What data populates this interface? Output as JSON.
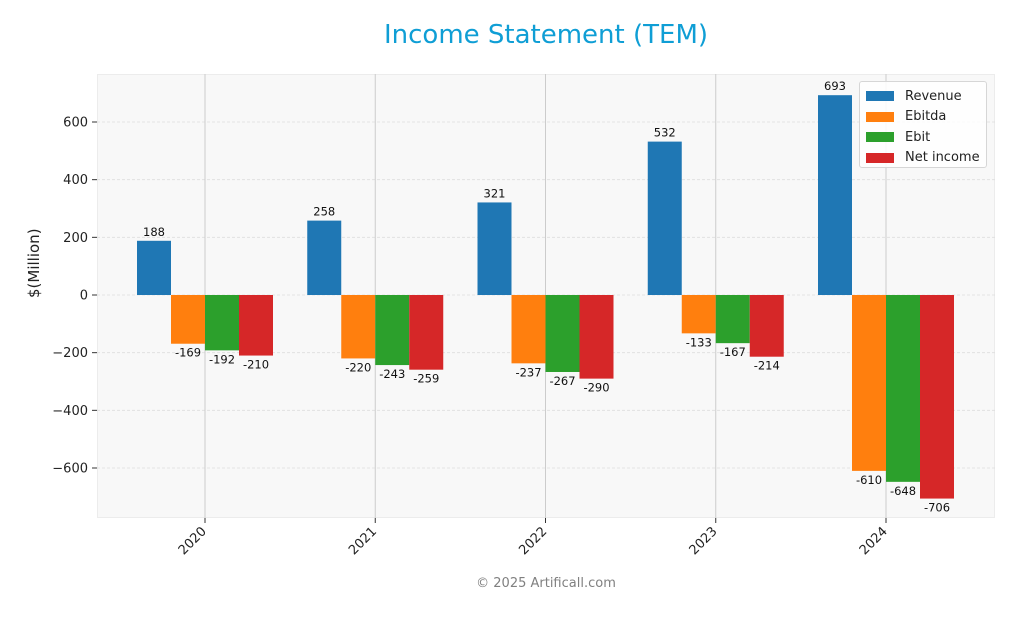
{
  "title": "Income Statement (TEM)",
  "footer": "© 2025 Artificall.com",
  "colors": {
    "title": "#0f9ed5",
    "Revenue": "#1f77b4",
    "Ebitda": "#ff7f0e",
    "Ebit": "#2ca02c",
    "Net income": "#d62728"
  },
  "legend": [
    {
      "label": "Revenue",
      "color": "#1f77b4"
    },
    {
      "label": "Ebitda",
      "color": "#ff7f0e"
    },
    {
      "label": "Ebit",
      "color": "#2ca02c"
    },
    {
      "label": "Net income",
      "color": "#d62728"
    }
  ],
  "chart_data": {
    "type": "bar",
    "title": "Income Statement (TEM)",
    "xlabel": "",
    "ylabel": "$(Million)",
    "categories": [
      "2020",
      "2021",
      "2022",
      "2023",
      "2024"
    ],
    "series": [
      {
        "name": "Revenue",
        "values": [
          188,
          258,
          321,
          532,
          693
        ]
      },
      {
        "name": "Ebitda",
        "values": [
          -169,
          -220,
          -237,
          -133,
          -610
        ]
      },
      {
        "name": "Ebit",
        "values": [
          -192,
          -243,
          -267,
          -167,
          -648
        ]
      },
      {
        "name": "Net income",
        "values": [
          -210,
          -259,
          -290,
          -214,
          -706
        ]
      }
    ],
    "yticks": [
      -600,
      -400,
      -200,
      0,
      200,
      400,
      600
    ],
    "ylim": [
      -775,
      770
    ],
    "grid": true,
    "legend_position": "upper right"
  }
}
